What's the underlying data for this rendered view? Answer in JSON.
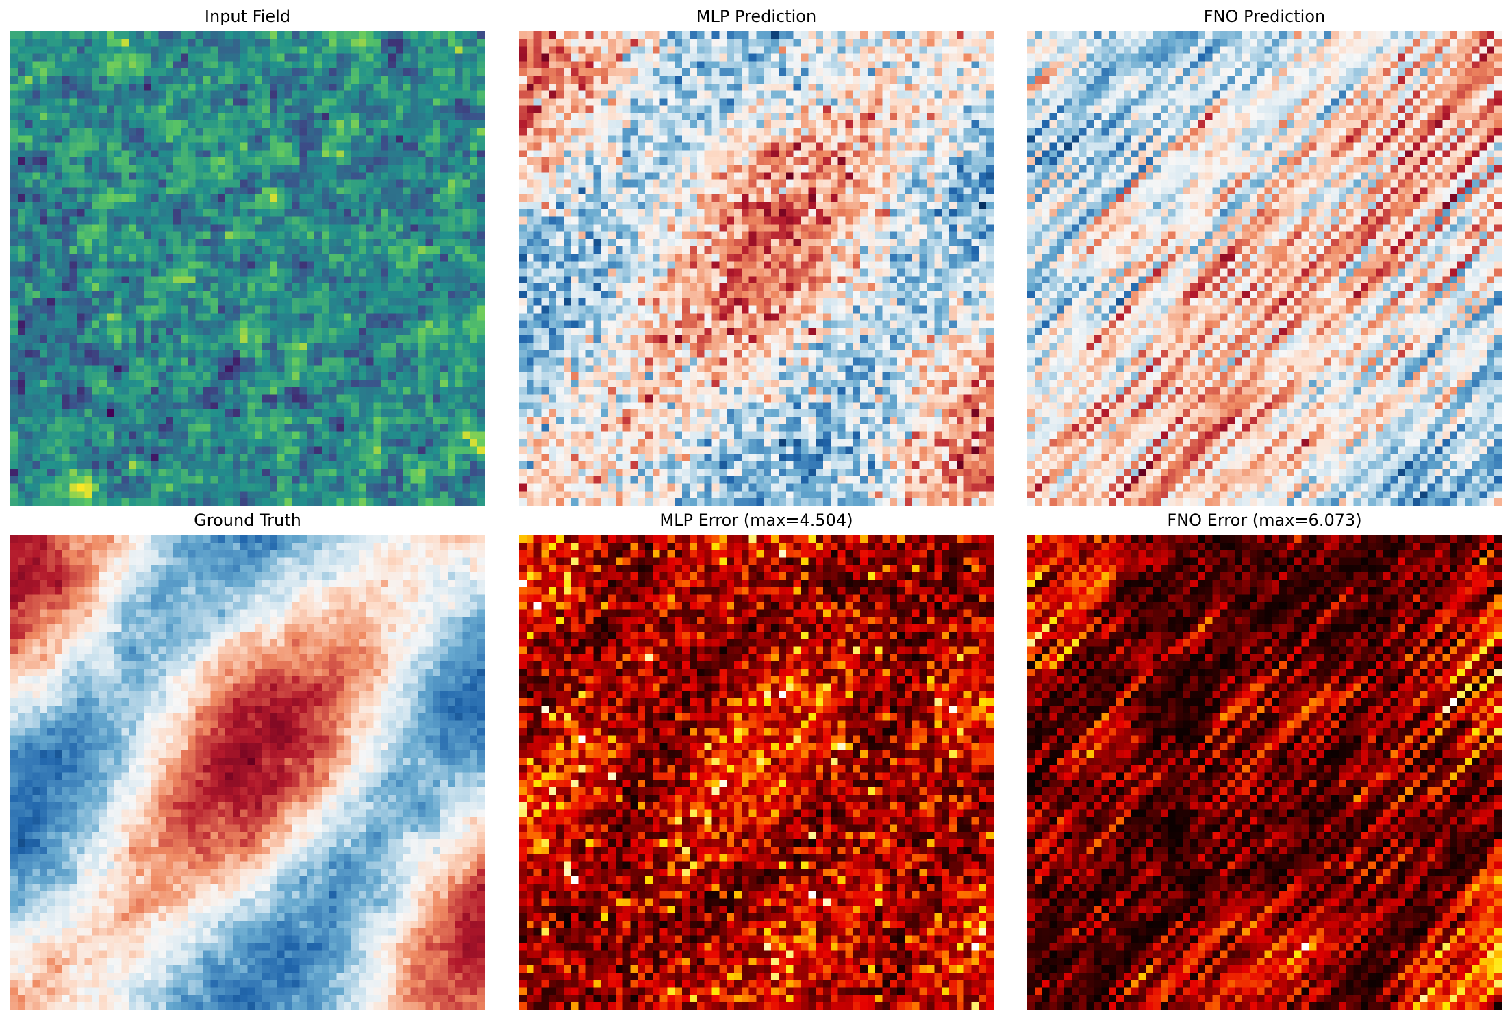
{
  "figure": {
    "panels": [
      {
        "id": "input",
        "title": "Input Field",
        "colormap": "viridis",
        "field": "input"
      },
      {
        "id": "mlp_pred",
        "title": "MLP Prediction",
        "colormap": "RdBu_r",
        "field": "mlp_pred"
      },
      {
        "id": "fno_pred",
        "title": "FNO Prediction",
        "colormap": "RdBu_r",
        "field": "fno_pred"
      },
      {
        "id": "truth",
        "title": "Ground Truth",
        "colormap": "RdBu_r",
        "field": "truth"
      },
      {
        "id": "mlp_err",
        "title": "MLP Error (max=4.504)",
        "colormap": "hot",
        "field": "mlp_err"
      },
      {
        "id": "fno_err",
        "title": "FNO Error (max=6.073)",
        "colormap": "hot",
        "field": "fno_err"
      }
    ]
  },
  "chart_data": [
    {
      "type": "heatmap",
      "title": "Input Field",
      "grid": "64x64",
      "colormap": "viridis",
      "axes": "off"
    },
    {
      "type": "heatmap",
      "title": "MLP Prediction",
      "grid": "64x64",
      "colormap": "RdBu_r",
      "axes": "off"
    },
    {
      "type": "heatmap",
      "title": "FNO Prediction",
      "grid": "64x64",
      "colormap": "RdBu_r",
      "axes": "off"
    },
    {
      "type": "heatmap",
      "title": "Ground Truth",
      "grid": "64x64",
      "colormap": "RdBu_r",
      "axes": "off"
    },
    {
      "type": "heatmap",
      "title": "MLP Error (max=4.504)",
      "grid": "64x64",
      "colormap": "hot",
      "axes": "off",
      "max": 4.504
    },
    {
      "type": "heatmap",
      "title": "FNO Error (max=6.073)",
      "grid": "64x64",
      "colormap": "hot",
      "axes": "off",
      "max": 6.073
    }
  ]
}
